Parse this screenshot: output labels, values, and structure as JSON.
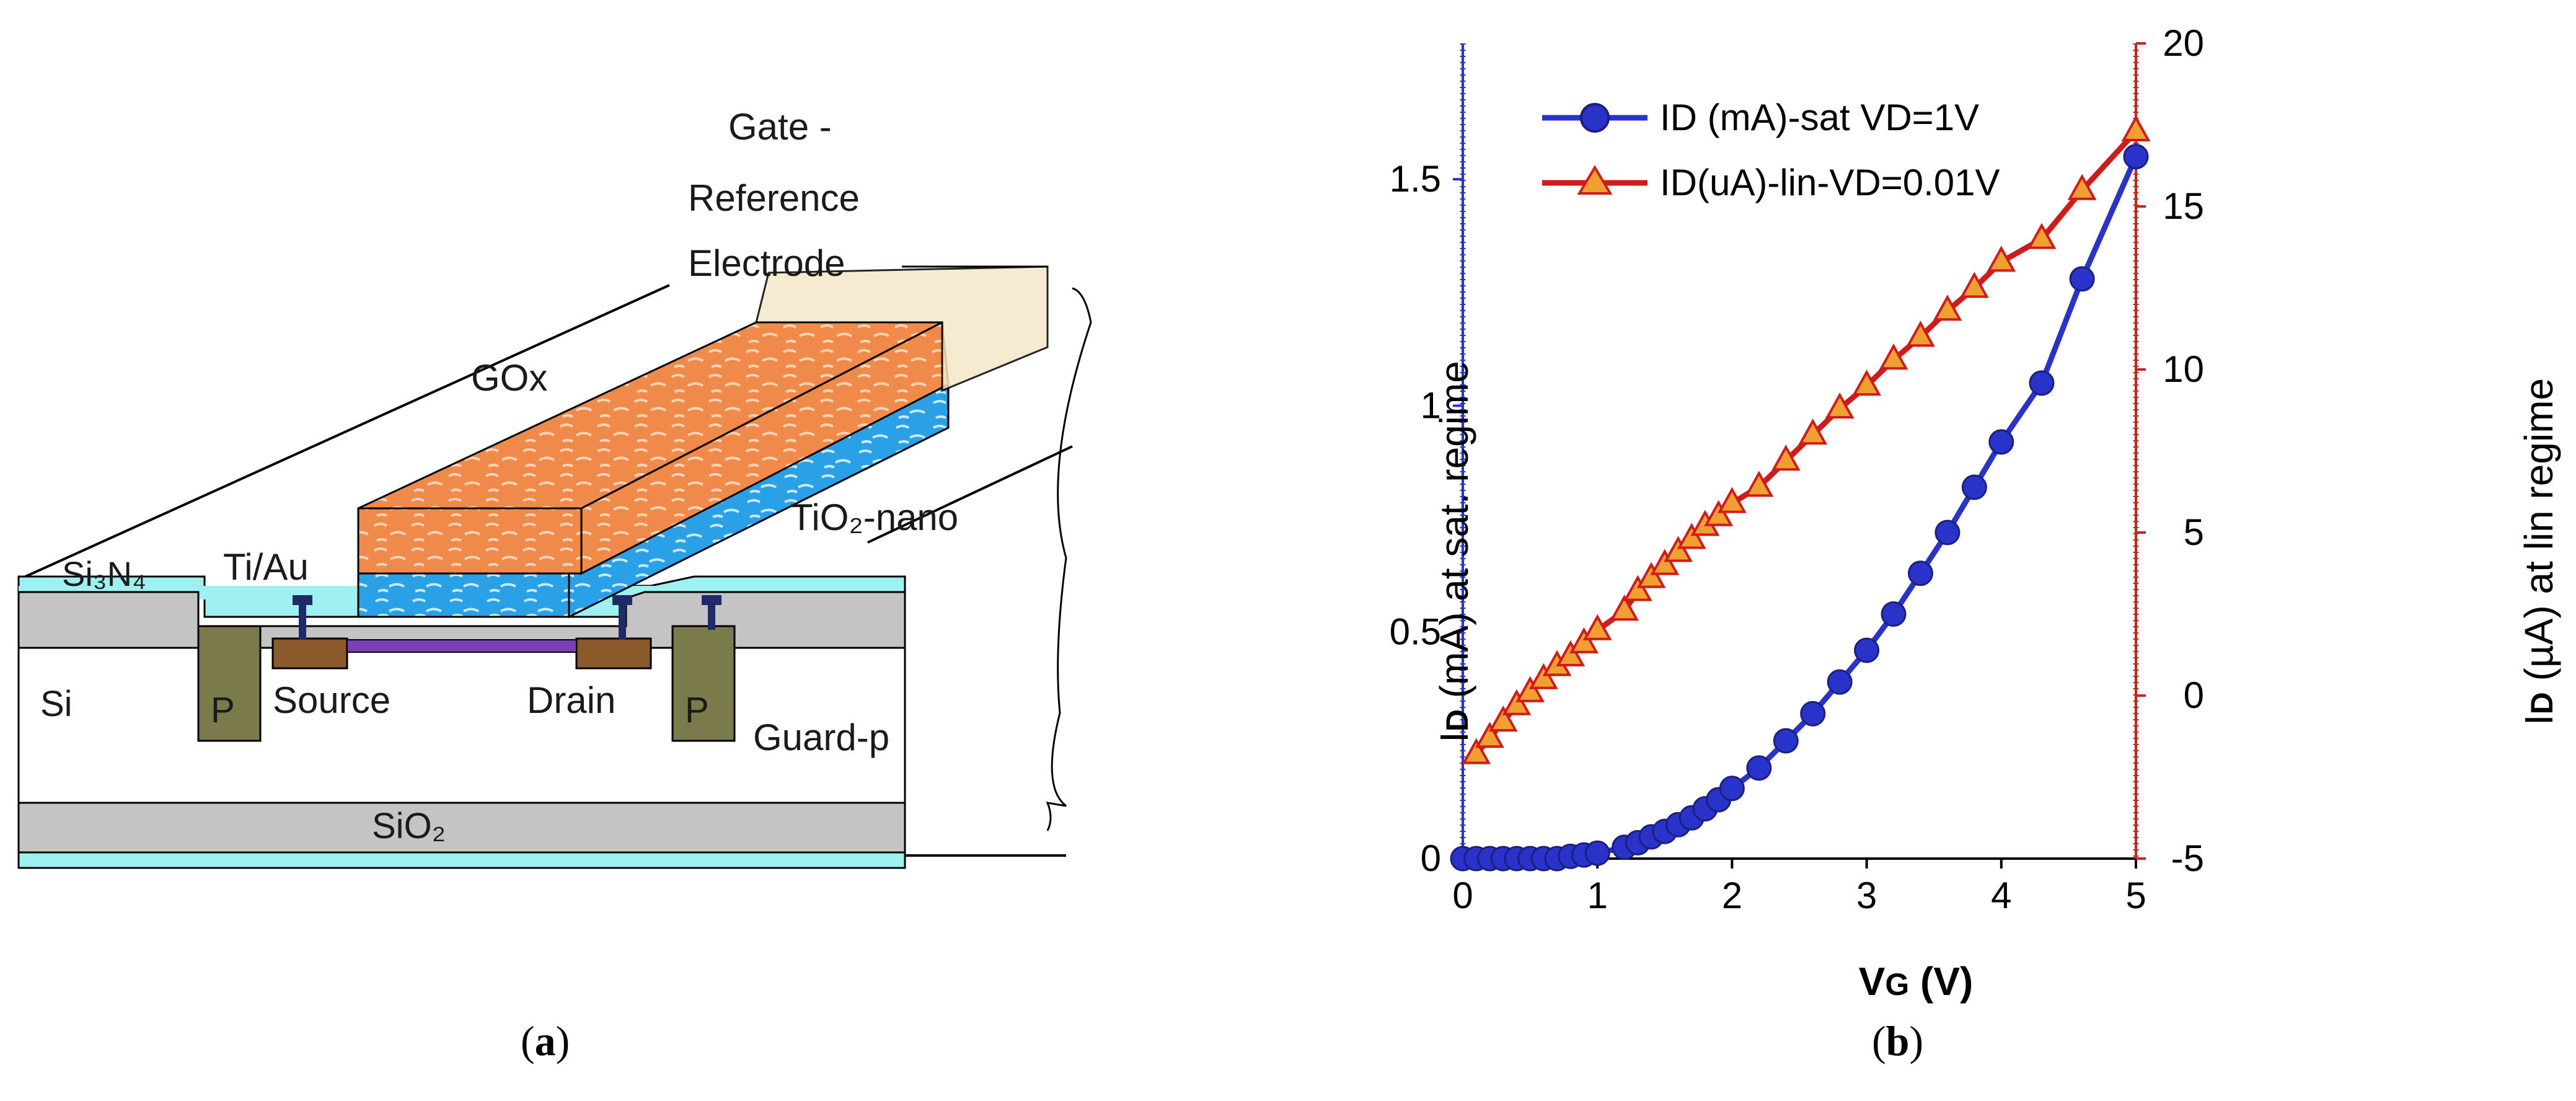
{
  "figure": {
    "caption_a_letter": "a",
    "caption_b_letter": "b"
  },
  "diagram": {
    "labels": {
      "gate_line1": "Gate -",
      "gate_line2": "Reference",
      "gate_line3": "Electrode",
      "gox": "GOx",
      "tio2": "TiO₂-nano",
      "si3n4": "Si₃N₄",
      "tiau": "Ti/Au",
      "si": "Si",
      "p_left": "P",
      "p_right": "P",
      "source": "Source",
      "drain": "Drain",
      "guard": "Guard-p",
      "sio2": "SiO₂"
    },
    "colors": {
      "gox": "#f08a4b",
      "tio2": "#2aa0e6",
      "si3n4": "#9ff0f0",
      "oxide_gray": "#c4c4c4",
      "p_well": "#7a7a4a",
      "contact": "#8b5a2b",
      "channel": "#7b3fb8",
      "metal": "#1f2a66"
    }
  },
  "chart_data": {
    "type": "line",
    "title": "",
    "xlabel": "VG (V)",
    "xlabel_main": "V",
    "xlabel_sub": "G",
    "xlabel_unit": " (V)",
    "ylabel_left": "ID (mA) at sat. regime",
    "ylabel_left_main": "I",
    "ylabel_left_sub": "D",
    "ylabel_left_rest": " (mA) at sat. regime",
    "ylabel_right": "ID (µA) at lin regime",
    "ylabel_right_main": "I",
    "ylabel_right_sub": "D",
    "ylabel_right_rest": " (µA) at lin regime",
    "xlim": [
      0,
      5
    ],
    "ylim_left": [
      0,
      1.8
    ],
    "ylim_right": [
      -5,
      20
    ],
    "x_ticks": [
      0,
      1,
      2,
      3,
      4,
      5
    ],
    "x_tick_labels": [
      "0",
      "1",
      "2",
      "3",
      "4",
      "5"
    ],
    "y_left_ticks": [
      0,
      0.5,
      1,
      1.5
    ],
    "y_left_tick_labels": [
      "0",
      "0.5",
      "1",
      "1.5"
    ],
    "y_right_ticks": [
      -5,
      0,
      5,
      10,
      15,
      20
    ],
    "y_right_tick_labels": [
      "-5",
      "0",
      "5",
      "10",
      "15",
      "20"
    ],
    "grid": false,
    "legend_position": "top-left",
    "series": [
      {
        "name": "ID (mA)-sat VD=1V",
        "axis": "left",
        "color": "#2a33c9",
        "marker": "circle",
        "x": [
          0,
          0.1,
          0.2,
          0.3,
          0.4,
          0.5,
          0.6,
          0.7,
          0.8,
          0.9,
          1.0,
          1.2,
          1.3,
          1.4,
          1.5,
          1.6,
          1.7,
          1.8,
          1.9,
          2.0,
          2.2,
          2.4,
          2.6,
          2.8,
          3.0,
          3.2,
          3.4,
          3.6,
          3.8,
          4.0,
          4.3,
          4.6,
          5.0
        ],
        "values": [
          0.0,
          0.0,
          0.0,
          0.0,
          0.0,
          0.0,
          0.0,
          0.0,
          0.005,
          0.008,
          0.012,
          0.025,
          0.035,
          0.048,
          0.06,
          0.075,
          0.09,
          0.11,
          0.13,
          0.155,
          0.2,
          0.26,
          0.32,
          0.39,
          0.46,
          0.54,
          0.63,
          0.72,
          0.82,
          0.92,
          1.05,
          1.28,
          1.55
        ]
      },
      {
        "name": "ID(uA)-lin-VD=0.01V",
        "axis": "right",
        "color": "#d11a1a",
        "marker": "triangle",
        "x": [
          0.1,
          0.2,
          0.3,
          0.4,
          0.5,
          0.6,
          0.7,
          0.8,
          0.9,
          1.0,
          1.2,
          1.3,
          1.4,
          1.5,
          1.6,
          1.7,
          1.8,
          1.9,
          2.0,
          2.2,
          2.4,
          2.6,
          2.8,
          3.0,
          3.2,
          3.4,
          3.6,
          3.8,
          4.0,
          4.3,
          4.6,
          5.0
        ],
        "values": [
          -1.8,
          -1.3,
          -0.8,
          -0.3,
          0.1,
          0.5,
          0.9,
          1.2,
          1.6,
          2.0,
          2.6,
          3.2,
          3.6,
          4.0,
          4.4,
          4.8,
          5.2,
          5.5,
          5.9,
          6.4,
          7.2,
          8.0,
          8.8,
          9.5,
          10.3,
          11.0,
          11.8,
          12.5,
          13.3,
          14.0,
          15.5,
          17.3
        ]
      }
    ]
  }
}
